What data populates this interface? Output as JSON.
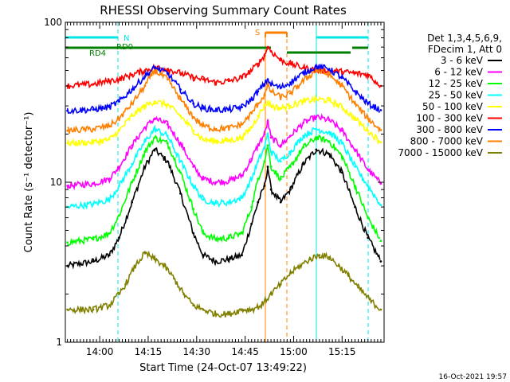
{
  "chart_data": {
    "type": "line",
    "title": "RHESSI Observing Summary Count Rates",
    "xlabel": "Start Time (24-Oct-07 13:49:22)",
    "ylabel": "Count Rate (s⁻¹ detector⁻¹)",
    "y_scale": "log",
    "ylim": [
      1,
      100
    ],
    "xlim": [
      "13:49:22",
      "15:28:00"
    ],
    "x_ticks": [
      "14:00",
      "14:15",
      "14:30",
      "14:45",
      "15:00",
      "15:15"
    ],
    "y_tick_labels": [
      "1",
      "10",
      "100"
    ],
    "legend_header": [
      "Det 1,3,4,5,6,9,",
      "FDecim 1, Att 0"
    ],
    "legend_position": "right",
    "grid": false,
    "footer_date": "16-Oct-2021 19:57",
    "annotations": {
      "N_label": "N",
      "RD0_label": "RD0",
      "RD4_label": "RD4",
      "S_label": "S"
    },
    "series": [
      {
        "name": "3 - 6 keV",
        "color": "#000000",
        "x": [
          "13:50",
          "13:58",
          "14:03",
          "14:06",
          "14:10",
          "14:14",
          "14:17",
          "14:21",
          "14:25",
          "14:29",
          "14:32",
          "14:36",
          "14:40",
          "14:44",
          "14:47",
          "14:49",
          "14:51",
          "14:52",
          "14:53",
          "14:56",
          "14:59",
          "15:03",
          "15:07",
          "15:11",
          "15:15",
          "15:19",
          "15:23",
          "15:27"
        ],
        "y": [
          3.0,
          3.2,
          3.5,
          4.5,
          7.5,
          12.5,
          16.0,
          13.5,
          8.5,
          4.8,
          3.5,
          3.2,
          3.3,
          3.5,
          5.5,
          7.5,
          9.5,
          12.5,
          9.0,
          7.5,
          9.0,
          13.0,
          16.0,
          15.0,
          11.5,
          7.0,
          4.5,
          3.2
        ]
      },
      {
        "name": "6 - 12 keV",
        "color": "#ff00ff",
        "x": [
          "13:50",
          "13:58",
          "14:03",
          "14:06",
          "14:10",
          "14:14",
          "14:17",
          "14:21",
          "14:25",
          "14:29",
          "14:32",
          "14:36",
          "14:40",
          "14:44",
          "14:47",
          "14:49",
          "14:51",
          "14:52",
          "14:53",
          "14:56",
          "14:59",
          "15:03",
          "15:07",
          "15:11",
          "15:15",
          "15:19",
          "15:23",
          "15:27"
        ],
        "y": [
          9.5,
          9.8,
          10.5,
          12.5,
          17.0,
          22.0,
          25.0,
          23.0,
          17.5,
          12.5,
          10.5,
          10.0,
          10.2,
          11.0,
          14.0,
          17.0,
          20.0,
          24.0,
          19.0,
          17.0,
          19.5,
          23.5,
          25.5,
          24.5,
          21.0,
          16.0,
          12.0,
          9.8
        ]
      },
      {
        "name": "12 - 25 keV",
        "color": "#00ff00",
        "x": [
          "13:50",
          "13:58",
          "14:03",
          "14:06",
          "14:10",
          "14:14",
          "14:17",
          "14:21",
          "14:25",
          "14:29",
          "14:32",
          "14:36",
          "14:40",
          "14:44",
          "14:47",
          "14:49",
          "14:51",
          "14:52",
          "14:53",
          "14:56",
          "14:59",
          "15:03",
          "15:07",
          "15:11",
          "15:15",
          "15:19",
          "15:23",
          "15:27"
        ],
        "y": [
          4.2,
          4.4,
          4.8,
          6.2,
          10.0,
          15.5,
          19.0,
          17.5,
          11.5,
          6.8,
          4.8,
          4.4,
          4.5,
          4.8,
          7.0,
          10.5,
          13.5,
          17.0,
          12.5,
          10.5,
          12.5,
          16.5,
          19.0,
          18.0,
          14.5,
          9.5,
          6.0,
          4.3
        ]
      },
      {
        "name": "25 - 50 keV",
        "color": "#00ffff",
        "x": [
          "13:50",
          "13:58",
          "14:03",
          "14:06",
          "14:10",
          "14:14",
          "14:17",
          "14:21",
          "14:25",
          "14:29",
          "14:32",
          "14:36",
          "14:40",
          "14:44",
          "14:47",
          "14:49",
          "14:51",
          "14:52",
          "14:53",
          "14:56",
          "14:59",
          "15:03",
          "15:07",
          "15:11",
          "15:15",
          "15:19",
          "15:23",
          "15:27"
        ],
        "y": [
          7.0,
          7.3,
          7.8,
          9.5,
          13.0,
          18.0,
          21.5,
          19.5,
          13.5,
          9.5,
          7.8,
          7.4,
          7.5,
          8.0,
          10.5,
          13.5,
          16.5,
          20.0,
          15.5,
          13.5,
          15.5,
          19.5,
          21.5,
          20.5,
          17.5,
          12.5,
          9.5,
          7.2
        ]
      },
      {
        "name": "50 - 100 keV",
        "color": "#ffff00",
        "x": [
          "13:50",
          "13:58",
          "14:03",
          "14:06",
          "14:10",
          "14:14",
          "14:17",
          "14:21",
          "14:25",
          "14:29",
          "14:32",
          "14:36",
          "14:40",
          "14:44",
          "14:47",
          "14:49",
          "14:51",
          "14:52",
          "14:53",
          "14:56",
          "14:59",
          "15:03",
          "15:07",
          "15:11",
          "15:15",
          "15:19",
          "15:23",
          "15:27"
        ],
        "y": [
          17.5,
          17.8,
          18.5,
          21.0,
          26.0,
          30.0,
          32.0,
          30.5,
          26.0,
          21.0,
          18.5,
          18.0,
          18.2,
          19.0,
          22.0,
          26.0,
          30.0,
          32.0,
          30.0,
          29.0,
          30.0,
          32.0,
          33.0,
          32.5,
          29.5,
          25.0,
          21.0,
          17.8
        ]
      },
      {
        "name": "100 - 300 keV",
        "color": "#ff0000",
        "x": [
          "13:50",
          "13:58",
          "14:03",
          "14:06",
          "14:10",
          "14:14",
          "14:17",
          "14:21",
          "14:25",
          "14:29",
          "14:32",
          "14:36",
          "14:40",
          "14:44",
          "14:47",
          "14:49",
          "14:51",
          "14:52",
          "14:53",
          "14:56",
          "14:59",
          "15:03",
          "15:07",
          "15:11",
          "15:15",
          "15:19",
          "15:23",
          "15:27"
        ],
        "y": [
          40.0,
          41.0,
          43.0,
          44.0,
          47.0,
          50.0,
          52.0,
          51.0,
          48.0,
          45.0,
          44.0,
          42.0,
          43.0,
          45.0,
          50.0,
          55.0,
          62.0,
          70.0,
          66.0,
          58.0,
          55.0,
          52.0,
          50.0,
          50.0,
          49.0,
          48.0,
          47.0,
          40.0
        ]
      },
      {
        "name": "300 - 800 keV",
        "color": "#0000ff",
        "x": [
          "13:50",
          "13:58",
          "14:03",
          "14:06",
          "14:10",
          "14:14",
          "14:17",
          "14:21",
          "14:25",
          "14:29",
          "14:32",
          "14:36",
          "14:40",
          "14:44",
          "14:47",
          "14:49",
          "14:51",
          "14:52",
          "14:53",
          "14:56",
          "14:59",
          "15:03",
          "15:07",
          "15:11",
          "15:15",
          "15:19",
          "15:23",
          "15:27"
        ],
        "y": [
          28.0,
          28.5,
          29.5,
          32.0,
          38.0,
          46.0,
          52.0,
          48.0,
          38.0,
          31.0,
          29.0,
          28.3,
          28.5,
          29.5,
          33.0,
          37.0,
          41.0,
          44.0,
          41.0,
          39.0,
          42.0,
          48.0,
          53.0,
          51.0,
          45.0,
          37.0,
          31.0,
          28.2
        ]
      },
      {
        "name": "800 - 7000 keV",
        "color": "#ff8000",
        "x": [
          "13:50",
          "13:58",
          "14:03",
          "14:06",
          "14:10",
          "14:14",
          "14:17",
          "14:21",
          "14:25",
          "14:29",
          "14:32",
          "14:36",
          "14:40",
          "14:44",
          "14:47",
          "14:49",
          "14:51",
          "14:52",
          "14:53",
          "14:56",
          "14:59",
          "15:03",
          "15:07",
          "15:11",
          "15:15",
          "15:19",
          "15:23",
          "15:27"
        ],
        "y": [
          21.0,
          21.5,
          22.5,
          25.0,
          31.0,
          40.0,
          50.0,
          44.0,
          33.0,
          25.5,
          22.5,
          21.5,
          21.8,
          23.0,
          27.0,
          31.0,
          35.0,
          40.0,
          37.0,
          34.0,
          36.0,
          43.0,
          50.0,
          47.0,
          40.0,
          31.0,
          25.0,
          21.2
        ]
      },
      {
        "name": "7000 - 15000 keV",
        "color": "#808000",
        "x": [
          "13:50",
          "13:58",
          "14:03",
          "14:06",
          "14:08",
          "14:11",
          "14:14",
          "14:17",
          "14:20",
          "14:23",
          "14:26",
          "14:29",
          "14:32",
          "14:36",
          "14:40",
          "14:44",
          "14:47",
          "14:50",
          "14:53",
          "14:56",
          "14:59",
          "15:02",
          "15:05",
          "15:08",
          "15:11",
          "15:14",
          "15:17",
          "15:20",
          "15:24",
          "15:27"
        ],
        "y": [
          1.6,
          1.6,
          1.7,
          2.0,
          2.3,
          3.0,
          3.6,
          3.3,
          3.0,
          2.5,
          2.0,
          1.7,
          1.6,
          1.5,
          1.5,
          1.6,
          1.6,
          1.7,
          2.0,
          2.3,
          2.7,
          3.0,
          3.3,
          3.5,
          3.4,
          3.0,
          2.6,
          2.2,
          1.8,
          1.6
        ]
      }
    ]
  }
}
